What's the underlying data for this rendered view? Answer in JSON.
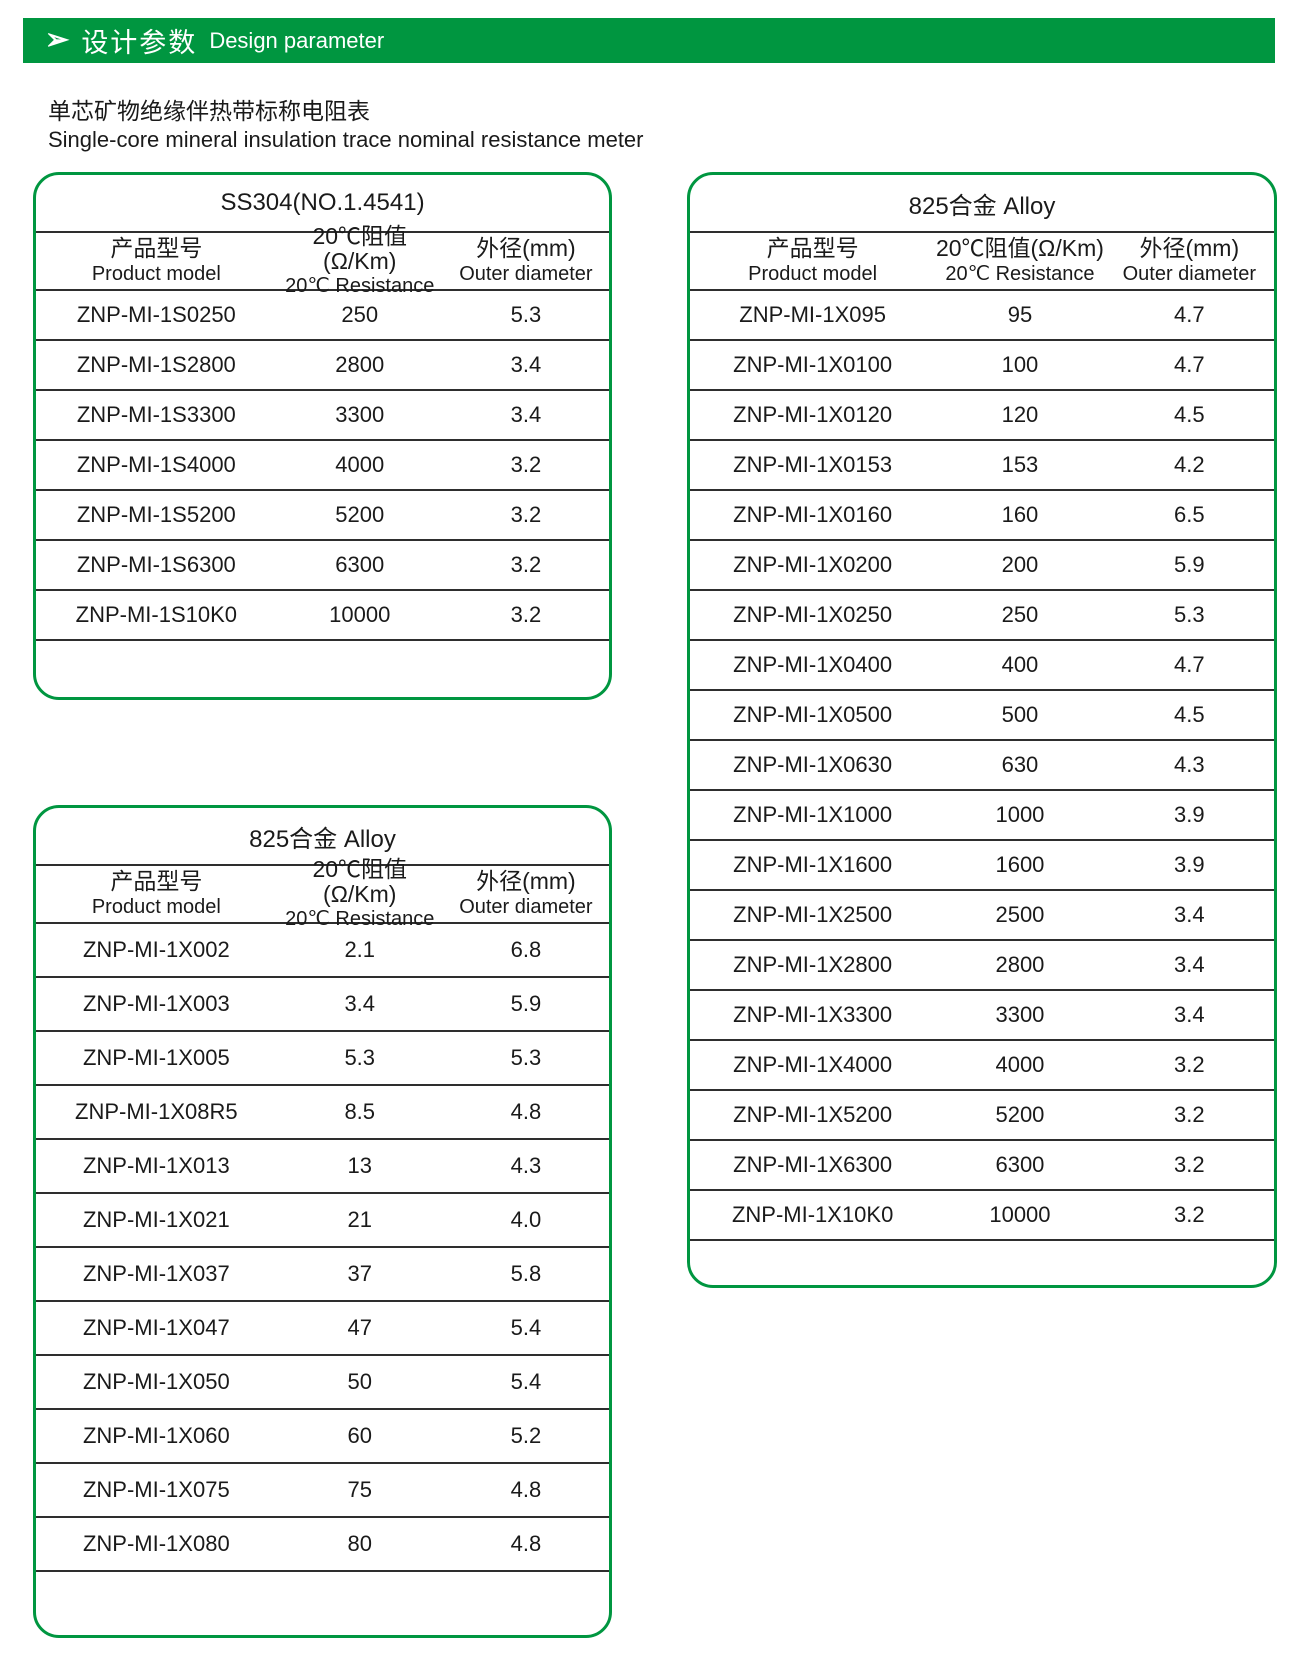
{
  "header": {
    "icon": "➢",
    "title_zh": "设计参数",
    "title_en": "Design parameter"
  },
  "subtitle": {
    "zh": "单芯矿物绝缘伴热带标称电阻表",
    "en": "Single-core mineral insulation trace nominal resistance meter"
  },
  "columns": {
    "model_zh": "产品型号",
    "model_en": "Product model",
    "resistance_zh": "20℃阻值(Ω/Km)",
    "resistance_en": "20℃ Resistance",
    "diameter_zh": "外径(mm)",
    "diameter_en": "Outer diameter"
  },
  "tables": {
    "ss304": {
      "title": "SS304(NO.1.4541)",
      "rows": [
        [
          "ZNP-MI-1S0250",
          "250",
          "5.3"
        ],
        [
          "ZNP-MI-1S2800",
          "2800",
          "3.4"
        ],
        [
          "ZNP-MI-1S3300",
          "3300",
          "3.4"
        ],
        [
          "ZNP-MI-1S4000",
          "4000",
          "3.2"
        ],
        [
          "ZNP-MI-1S5200",
          "5200",
          "3.2"
        ],
        [
          "ZNP-MI-1S6300",
          "6300",
          "3.2"
        ],
        [
          "ZNP-MI-1S10K0",
          "10000",
          "3.2"
        ]
      ]
    },
    "alloy_left": {
      "title": "825合金 Alloy",
      "rows": [
        [
          "ZNP-MI-1X002",
          "2.1",
          "6.8"
        ],
        [
          "ZNP-MI-1X003",
          "3.4",
          "5.9"
        ],
        [
          "ZNP-MI-1X005",
          "5.3",
          "5.3"
        ],
        [
          "ZNP-MI-1X08R5",
          "8.5",
          "4.8"
        ],
        [
          "ZNP-MI-1X013",
          "13",
          "4.3"
        ],
        [
          "ZNP-MI-1X021",
          "21",
          "4.0"
        ],
        [
          "ZNP-MI-1X037",
          "37",
          "5.8"
        ],
        [
          "ZNP-MI-1X047",
          "47",
          "5.4"
        ],
        [
          "ZNP-MI-1X050",
          "50",
          "5.4"
        ],
        [
          "ZNP-MI-1X060",
          "60",
          "5.2"
        ],
        [
          "ZNP-MI-1X075",
          "75",
          "4.8"
        ],
        [
          "ZNP-MI-1X080",
          "80",
          "4.8"
        ]
      ]
    },
    "alloy_right": {
      "title": "825合金 Alloy",
      "rows": [
        [
          "ZNP-MI-1X095",
          "95",
          "4.7"
        ],
        [
          "ZNP-MI-1X0100",
          "100",
          "4.7"
        ],
        [
          "ZNP-MI-1X0120",
          "120",
          "4.5"
        ],
        [
          "ZNP-MI-1X0153",
          "153",
          "4.2"
        ],
        [
          "ZNP-MI-1X0160",
          "160",
          "6.5"
        ],
        [
          "ZNP-MI-1X0200",
          "200",
          "5.9"
        ],
        [
          "ZNP-MI-1X0250",
          "250",
          "5.3"
        ],
        [
          "ZNP-MI-1X0400",
          "400",
          "4.7"
        ],
        [
          "ZNP-MI-1X0500",
          "500",
          "4.5"
        ],
        [
          "ZNP-MI-1X0630",
          "630",
          "4.3"
        ],
        [
          "ZNP-MI-1X1000",
          "1000",
          "3.9"
        ],
        [
          "ZNP-MI-1X1600",
          "1600",
          "3.9"
        ],
        [
          "ZNP-MI-1X2500",
          "2500",
          "3.4"
        ],
        [
          "ZNP-MI-1X2800",
          "2800",
          "3.4"
        ],
        [
          "ZNP-MI-1X3300",
          "3300",
          "3.4"
        ],
        [
          "ZNP-MI-1X4000",
          "4000",
          "3.2"
        ],
        [
          "ZNP-MI-1X5200",
          "5200",
          "3.2"
        ],
        [
          "ZNP-MI-1X6300",
          "6300",
          "3.2"
        ],
        [
          "ZNP-MI-1X10K0",
          "10000",
          "3.2"
        ]
      ]
    }
  },
  "colors": {
    "accent_green": "#009640",
    "table_line": "#2e2e2e",
    "text": "#1a1a1a"
  }
}
